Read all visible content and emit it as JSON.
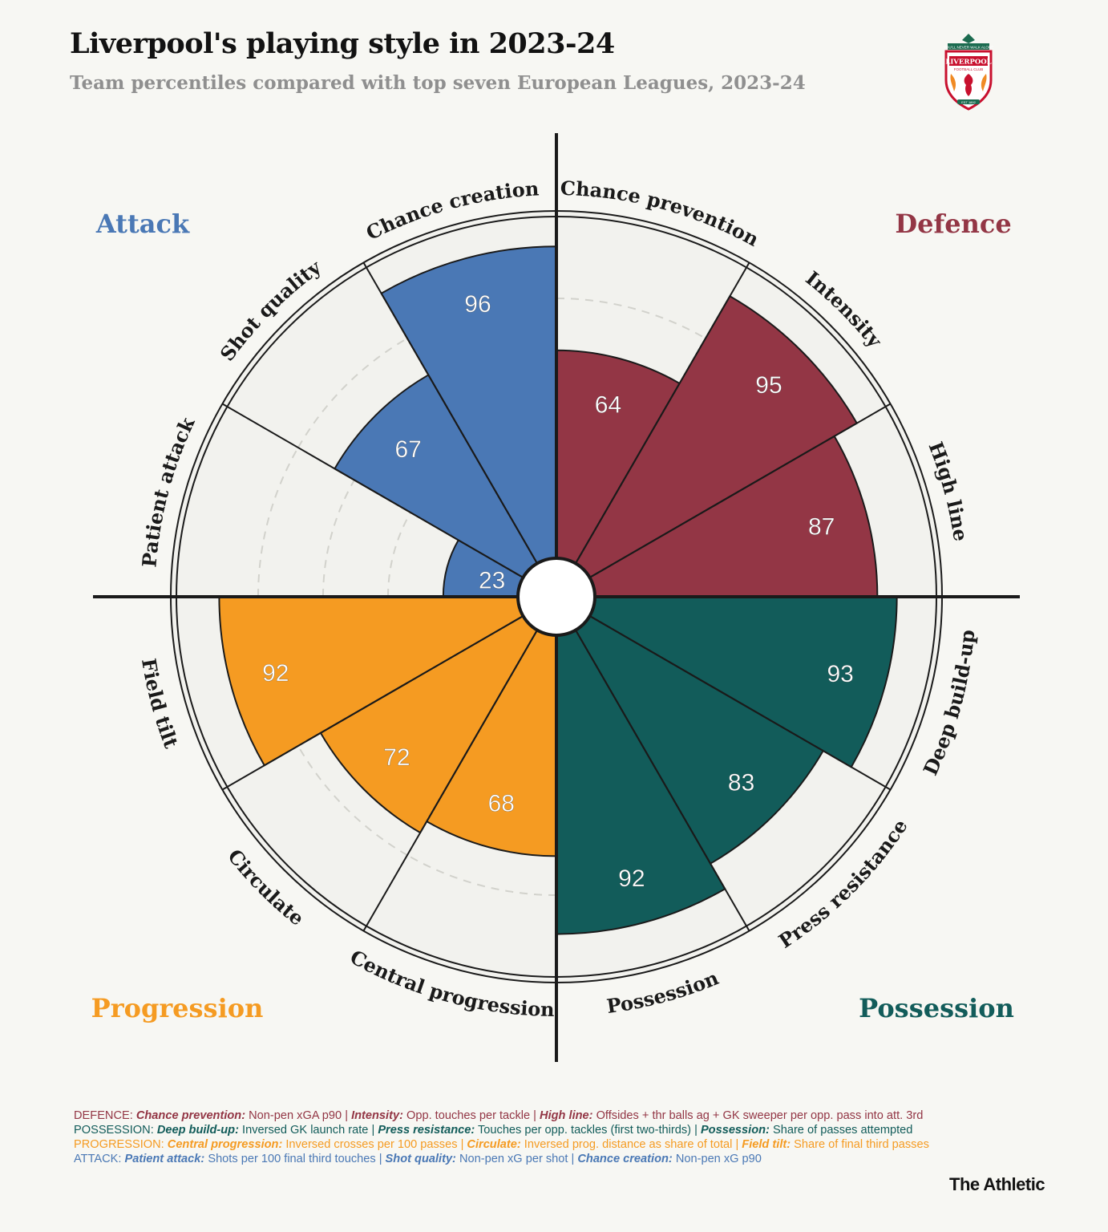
{
  "header": {
    "title": "Liverpool's playing style in 2023-24",
    "subtitle": "Team percentiles compared with top seven European Leagues, 2023-24"
  },
  "crest": {
    "text_top": "YOU'LL NEVER WALK ALONE",
    "text_name": "LIVERPOOL",
    "text_sub": "FOOTBALL CLUB",
    "text_est": "EST 1892"
  },
  "brand": "The Athletic",
  "colors": {
    "attack": "#4a78b5",
    "defence": "#933645",
    "possession": "#125c5a",
    "progression": "#f59b22",
    "background": "#f7f7f3"
  },
  "chart_data": {
    "type": "polar-bar",
    "scale_max": 100,
    "gridlines": [
      20,
      40,
      60,
      80
    ],
    "categories": [
      {
        "name": "Attack",
        "color": "#4a78b5",
        "position": "top-left"
      },
      {
        "name": "Defence",
        "color": "#933645",
        "position": "top-right"
      },
      {
        "name": "Possession",
        "color": "#125c5a",
        "position": "bottom-right"
      },
      {
        "name": "Progression",
        "color": "#f59b22",
        "position": "bottom-left"
      }
    ],
    "metrics": [
      {
        "label": "Chance prevention",
        "value": 64,
        "group": "Defence"
      },
      {
        "label": "Intensity",
        "value": 95,
        "group": "Defence"
      },
      {
        "label": "High line",
        "value": 87,
        "group": "Defence"
      },
      {
        "label": "Deep build-up",
        "value": 93,
        "group": "Possession"
      },
      {
        "label": "Press resistance",
        "value": 83,
        "group": "Possession"
      },
      {
        "label": "Possession",
        "value": 92,
        "group": "Possession"
      },
      {
        "label": "Central progression",
        "value": 68,
        "group": "Progression"
      },
      {
        "label": "Circulate",
        "value": 72,
        "group": "Progression"
      },
      {
        "label": "Field tilt",
        "value": 92,
        "group": "Progression"
      },
      {
        "label": "Patient attack",
        "value": 23,
        "group": "Attack"
      },
      {
        "label": "Shot quality",
        "value": 67,
        "group": "Attack"
      },
      {
        "label": "Chance creation",
        "value": 96,
        "group": "Attack"
      }
    ]
  },
  "notes": [
    {
      "color": "#933645",
      "prefix": "DEFENCE: ",
      "parts": [
        {
          "k": "Chance prevention:",
          "v": " Non-pen xGA p90 | "
        },
        {
          "k": "Intensity:",
          "v": " Opp. touches per tackle | "
        },
        {
          "k": "High line:",
          "v": " Offsides + thr balls ag + GK sweeper per opp. pass into att. 3rd"
        }
      ]
    },
    {
      "color": "#125c5a",
      "prefix": "POSSESSION: ",
      "parts": [
        {
          "k": "Deep build-up:",
          "v": " Inversed GK launch rate | "
        },
        {
          "k": "Press resistance:",
          "v": " Touches per opp. tackles (first two-thirds) | "
        },
        {
          "k": "Possession:",
          "v": " Share of passes attempted"
        }
      ]
    },
    {
      "color": "#f59b22",
      "prefix": "PROGRESSION: ",
      "parts": [
        {
          "k": "Central progression:",
          "v": " Inversed crosses per 100 passes | "
        },
        {
          "k": "Circulate:",
          "v": " Inversed prog. distance as share of total | "
        },
        {
          "k": "Field tilt:",
          "v": " Share of final third passes"
        }
      ]
    },
    {
      "color": "#4a78b5",
      "prefix": "ATTACK: ",
      "parts": [
        {
          "k": "Patient attack:",
          "v": " Shots per 100 final third touches | "
        },
        {
          "k": "Shot quality:",
          "v": " Non-pen xG per shot | "
        },
        {
          "k": "Chance creation:",
          "v": " Non-pen xG p90"
        }
      ]
    }
  ]
}
